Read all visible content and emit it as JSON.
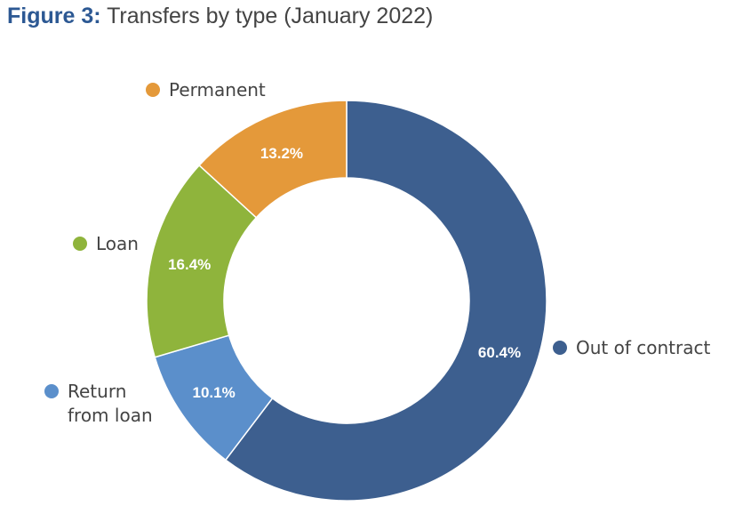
{
  "figure": {
    "number_label": "Figure 3:",
    "title": "Transfers by type (January 2022)"
  },
  "chart_data": {
    "type": "pie",
    "donut": true,
    "start_angle_deg": 0,
    "direction": "clockwise",
    "slices": [
      {
        "name": "Out of contract",
        "value": 60.4,
        "label": "60.4%",
        "color": "#3d5f8f",
        "legend_lines": [
          "Out of contract"
        ]
      },
      {
        "name": "Return from loan",
        "value": 10.1,
        "label": "10.1%",
        "color": "#5b8fcb",
        "legend_lines": [
          "Return",
          "from loan"
        ]
      },
      {
        "name": "Loan",
        "value": 16.4,
        "label": "16.4%",
        "color": "#8fb43c",
        "legend_lines": [
          "Loan"
        ]
      },
      {
        "name": "Permanent",
        "value": 13.2,
        "label": "13.2%",
        "color": "#e4993a",
        "legend_lines": [
          "Permanent"
        ]
      }
    ]
  }
}
